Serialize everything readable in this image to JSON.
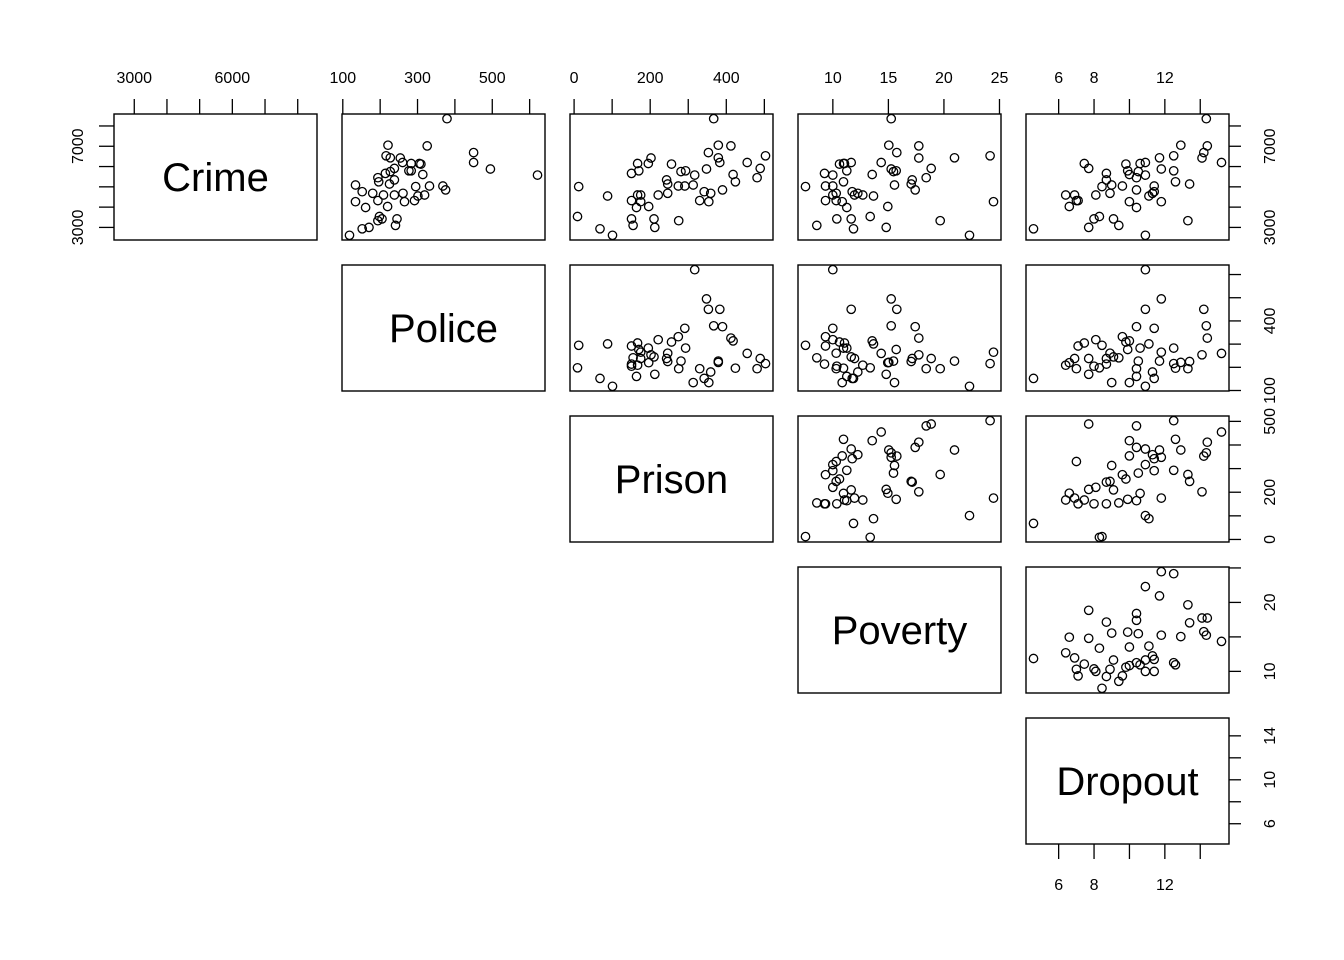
{
  "chart_data": {
    "type": "scatter",
    "title": "",
    "layout": "pairs-upper",
    "variables": [
      "Crime",
      "Police",
      "Prison",
      "Poverty",
      "Dropout"
    ],
    "data": {
      "Crime": [
        8360,
        7050,
        7020,
        6690,
        6530,
        6430,
        6420,
        6200,
        6200,
        6150,
        6150,
        6120,
        5910,
        5880,
        5790,
        5790,
        5750,
        5660,
        5610,
        5580,
        5450,
        5340,
        5250,
        5140,
        5090,
        5040,
        5040,
        5010,
        4850,
        4760,
        4680,
        4680,
        4600,
        4600,
        4600,
        4550,
        4320,
        4320,
        4270,
        4270,
        4030,
        3980,
        3540,
        3420,
        3420,
        3330,
        3100,
        3000,
        2930,
        2610
      ],
      "Police": [
        379,
        221,
        326,
        450,
        216,
        227,
        254,
        450,
        260,
        283,
        305,
        309,
        238,
        495,
        277,
        283,
        227,
        214,
        314,
        621,
        194,
        238,
        196,
        225,
        134,
        332,
        368,
        295,
        375,
        152,
        180,
        261,
        209,
        238,
        319,
        301,
        194,
        292,
        134,
        265,
        220,
        161,
        198,
        205,
        245,
        194,
        241,
        170,
        152,
        118
      ],
      "Prison": [
        367,
        379,
        412,
        353,
        503,
        379,
        202,
        383,
        455,
        195,
        167,
        256,
        489,
        348,
        170,
        293,
        281,
        151,
        418,
        317,
        481,
        243,
        424,
        246,
        313,
        274,
        291,
        12,
        390,
        342,
        359,
        246,
        167,
        175,
        221,
        88,
        330,
        151,
        354,
        175,
        196,
        164,
        9,
        151,
        210,
        275,
        155,
        212,
        68,
        101
      ],
      "Poverty": [
        15.25,
        15.04,
        17.74,
        15.76,
        24.16,
        20.95,
        17.74,
        11.65,
        14.35,
        10.96,
        11.05,
        10.6,
        18.85,
        15.25,
        15.7,
        11.26,
        15.46,
        9.25,
        13.54,
        10.0,
        18.4,
        17.14,
        10.96,
        17.05,
        15.55,
        9.34,
        10.0,
        7.54,
        17.41,
        11.74,
        12.25,
        10.3,
        12.7,
        11.95,
        10.0,
        13.66,
        10.3,
        9.34,
        10.84,
        24.46,
        14.95,
        11.26,
        13.36,
        10.36,
        11.65,
        19.66,
        8.56,
        14.8,
        11.86,
        22.3
      ],
      "Dropout": [
        14.34,
        12.9,
        14.4,
        14.2,
        12.5,
        11.7,
        14.1,
        10.9,
        15.2,
        10.6,
        7.45,
        9.8,
        7.7,
        11.8,
        9.9,
        12.5,
        10.5,
        8.7,
        10.0,
        10.9,
        10.4,
        8.7,
        12.6,
        13.4,
        9.0,
        9.6,
        11.4,
        8.45,
        10.4,
        11.4,
        11.3,
        8.9,
        6.4,
        6.9,
        8.1,
        11.1,
        7.0,
        7.1,
        10.0,
        11.8,
        6.6,
        10.4,
        8.3,
        8.0,
        9.1,
        13.3,
        9.4,
        7.7,
        4.58,
        10.9
      ]
    },
    "axes": {
      "top": [
        {
          "var": "Crime",
          "ticks": [
            3000,
            4000,
            5000,
            6000,
            7000,
            8000
          ],
          "labels": [
            "3000",
            "6000"
          ]
        },
        {
          "var": "Police",
          "ticks": [
            100,
            200,
            300,
            400,
            500,
            600
          ],
          "labels": [
            "100",
            "300",
            "500"
          ]
        },
        {
          "var": "Prison",
          "ticks": [
            0,
            100,
            200,
            300,
            400,
            500
          ],
          "labels": [
            "0",
            "200",
            "400"
          ]
        },
        {
          "var": "Poverty",
          "ticks": [
            10,
            15,
            20,
            25
          ],
          "labels": [
            "10",
            "15",
            "20",
            "25"
          ]
        },
        {
          "var": "Dropout",
          "ticks": [
            6,
            8,
            10,
            12,
            14
          ],
          "labels": [
            "6",
            "8",
            "12"
          ]
        }
      ],
      "left": [
        {
          "var": "Crime",
          "ticks": [
            3000,
            4000,
            5000,
            6000,
            7000,
            8000
          ],
          "labels": [
            "3000",
            "7000"
          ]
        }
      ],
      "right": [
        {
          "var": "Crime",
          "ticks": [
            3000,
            4000,
            5000,
            6000,
            7000,
            8000
          ],
          "labels": [
            "3000",
            "7000"
          ]
        },
        {
          "var": "Police",
          "ticks": [
            100,
            200,
            300,
            400,
            500,
            600
          ],
          "labels": [
            "100",
            "400"
          ]
        },
        {
          "var": "Prison",
          "ticks": [
            0,
            100,
            200,
            300,
            400,
            500
          ],
          "labels": [
            "0",
            "200",
            "500"
          ]
        },
        {
          "var": "Poverty",
          "ticks": [
            10,
            15,
            20,
            25
          ],
          "labels": [
            "10",
            "20"
          ]
        },
        {
          "var": "Dropout",
          "ticks": [
            6,
            8,
            10,
            12,
            14
          ],
          "labels": [
            "6",
            "10",
            "14"
          ]
        }
      ],
      "bottom": [
        {
          "var": "Dropout",
          "ticks": [
            6,
            8,
            10,
            12,
            14
          ],
          "labels": [
            "6",
            "8",
            "12"
          ]
        }
      ]
    },
    "marker": "open-circle",
    "colors": {
      "ink": "#000000",
      "background": "#ffffff"
    }
  }
}
